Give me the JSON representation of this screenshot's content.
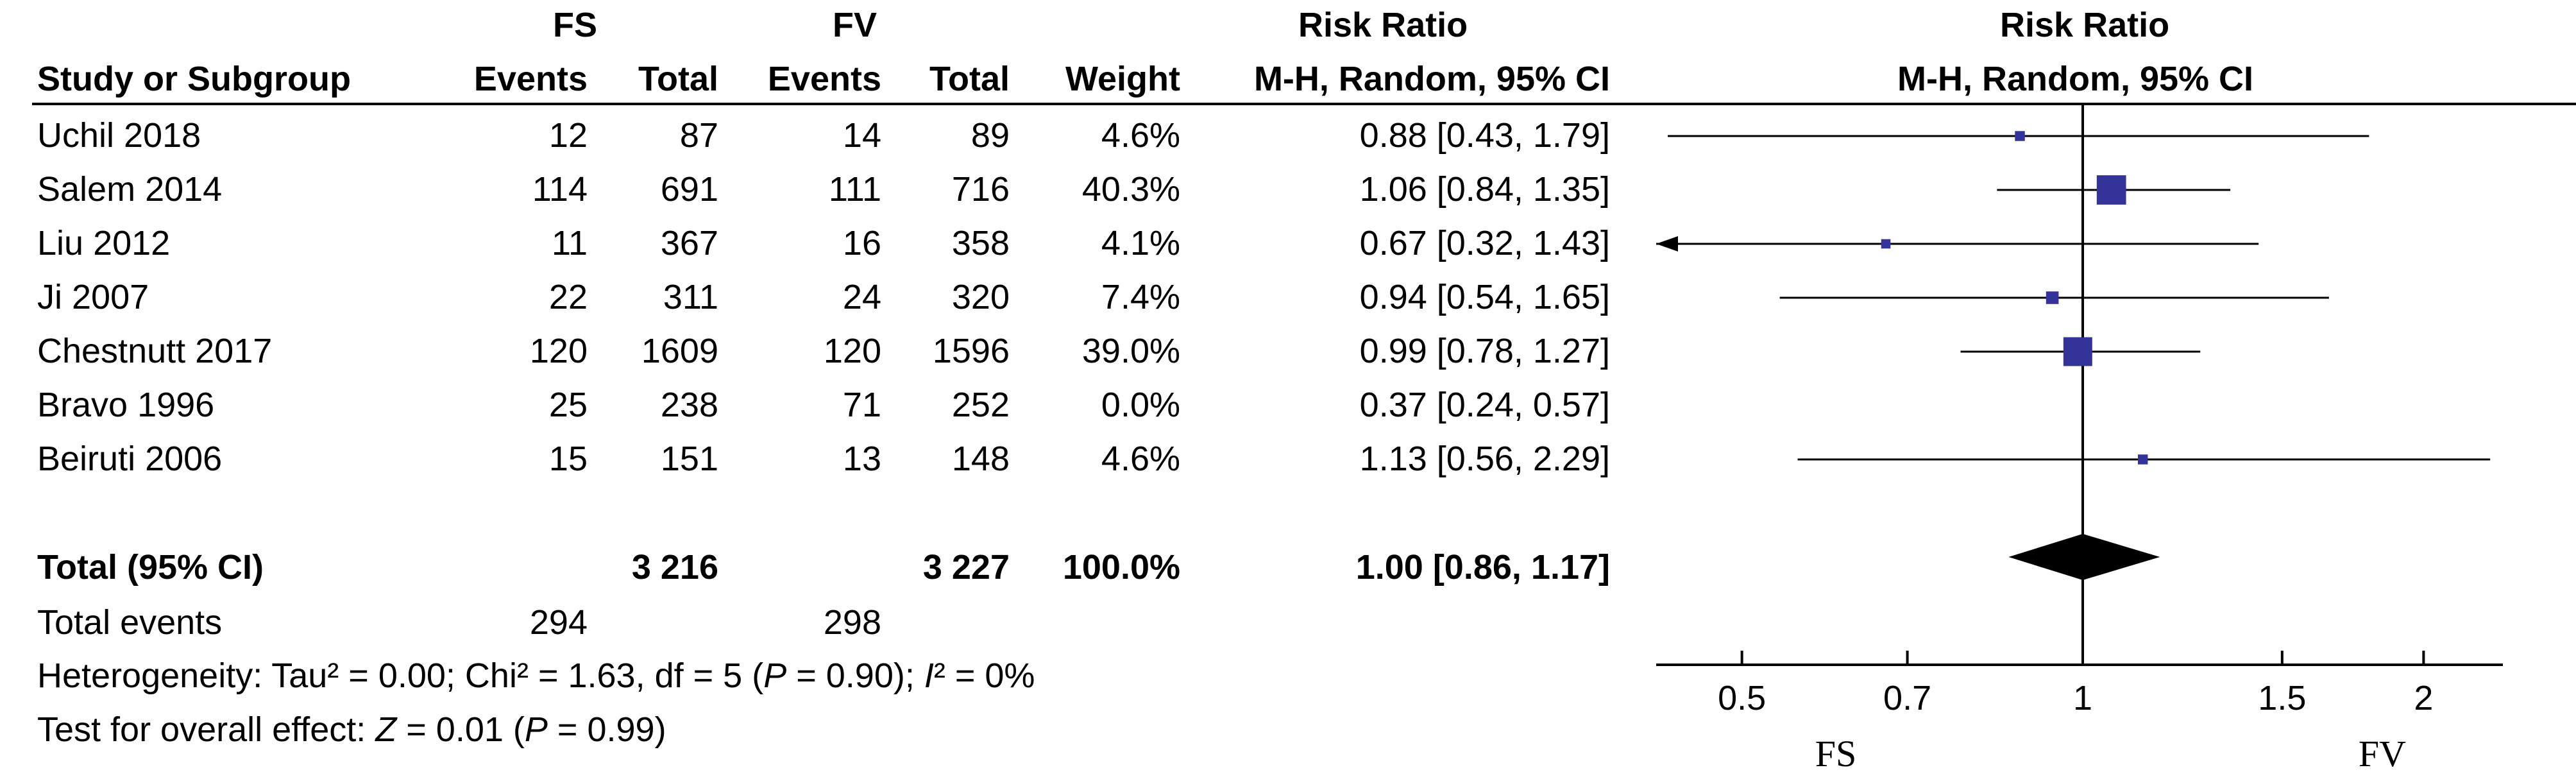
{
  "chart_data": {
    "type": "forest",
    "group_headers": {
      "experimental": "FS",
      "control": "FV"
    },
    "columns": {
      "study": "Study or Subgroup",
      "events": "Events",
      "total": "Total",
      "weight": "Weight",
      "rr_title": "Risk Ratio",
      "rr_method": "M-H, Random, 95% CI"
    },
    "studies": [
      {
        "name": "Uchil 2018",
        "e_events": "12",
        "e_total": "87",
        "c_events": "14",
        "c_total": "89",
        "weight": "4.6%",
        "ci_text": "0.88 [0.43, 1.79]",
        "rr": 0.88,
        "lo": 0.43,
        "hi": 1.79,
        "w": 4.6
      },
      {
        "name": "Salem 2014",
        "e_events": "114",
        "e_total": "691",
        "c_events": "111",
        "c_total": "716",
        "weight": "40.3%",
        "ci_text": "1.06 [0.84, 1.35]",
        "rr": 1.06,
        "lo": 0.84,
        "hi": 1.35,
        "w": 40.3
      },
      {
        "name": "Liu 2012",
        "e_events": "11",
        "e_total": "367",
        "c_events": "16",
        "c_total": "358",
        "weight": "4.1%",
        "ci_text": "0.67 [0.32, 1.43]",
        "rr": 0.67,
        "lo": 0.32,
        "hi": 1.43,
        "w": 4.1
      },
      {
        "name": "Ji 2007",
        "e_events": "22",
        "e_total": "311",
        "c_events": "24",
        "c_total": "320",
        "weight": "7.4%",
        "ci_text": "0.94 [0.54, 1.65]",
        "rr": 0.94,
        "lo": 0.54,
        "hi": 1.65,
        "w": 7.4
      },
      {
        "name": "Chestnutt 2017",
        "e_events": "120",
        "e_total": "1609",
        "c_events": "120",
        "c_total": "1596",
        "weight": "39.0%",
        "ci_text": "0.99 [0.78, 1.27]",
        "rr": 0.99,
        "lo": 0.78,
        "hi": 1.27,
        "w": 39.0
      },
      {
        "name": "Bravo 1996",
        "e_events": "25",
        "e_total": "238",
        "c_events": "71",
        "c_total": "252",
        "weight": "0.0%",
        "ci_text": "0.37 [0.24, 0.57]",
        "rr": 0.37,
        "lo": 0.24,
        "hi": 0.57,
        "w": 0.0
      },
      {
        "name": "Beiruti 2006",
        "e_events": "15",
        "e_total": "151",
        "c_events": "13",
        "c_total": "148",
        "weight": "4.6%",
        "ci_text": "1.13 [0.56, 2.29]",
        "rr": 1.13,
        "lo": 0.56,
        "hi": 2.29,
        "w": 4.6
      }
    ],
    "total": {
      "label": "Total (95% CI)",
      "e_total": "3 216",
      "c_total": "3 227",
      "weight": "100.0%",
      "ci_text": "1.00 [0.86, 1.17]",
      "rr": 1.0,
      "lo": 0.86,
      "hi": 1.17
    },
    "total_events": {
      "label": "Total events",
      "e": "294",
      "c": "298"
    },
    "heterogeneity": {
      "prefix": "Heterogeneity: Tau² = 0.00; Chi² = 1.63, df = 5 (",
      "p_sym": "P",
      "mid": " = 0.90); ",
      "i_sym": "I",
      "suffix": "² = 0%"
    },
    "overall_effect": {
      "prefix": "Test for overall effect: ",
      "z_sym": "Z",
      "mid": " = 0.01 (",
      "p_sym": "P",
      "suffix": " = 0.99)"
    },
    "axis": {
      "scale": "log",
      "xlim": [
        0.42,
        2.35
      ],
      "ticks": [
        0.5,
        0.7,
        1,
        1.5,
        2
      ],
      "tick_labels": [
        "0.5",
        "0.7",
        "1",
        "1.5",
        "2"
      ],
      "left_label": "FS",
      "right_label": "FV"
    },
    "colors": {
      "study_marker": "#333399",
      "summary_diamond": "#000000",
      "lines": "#000000"
    }
  }
}
